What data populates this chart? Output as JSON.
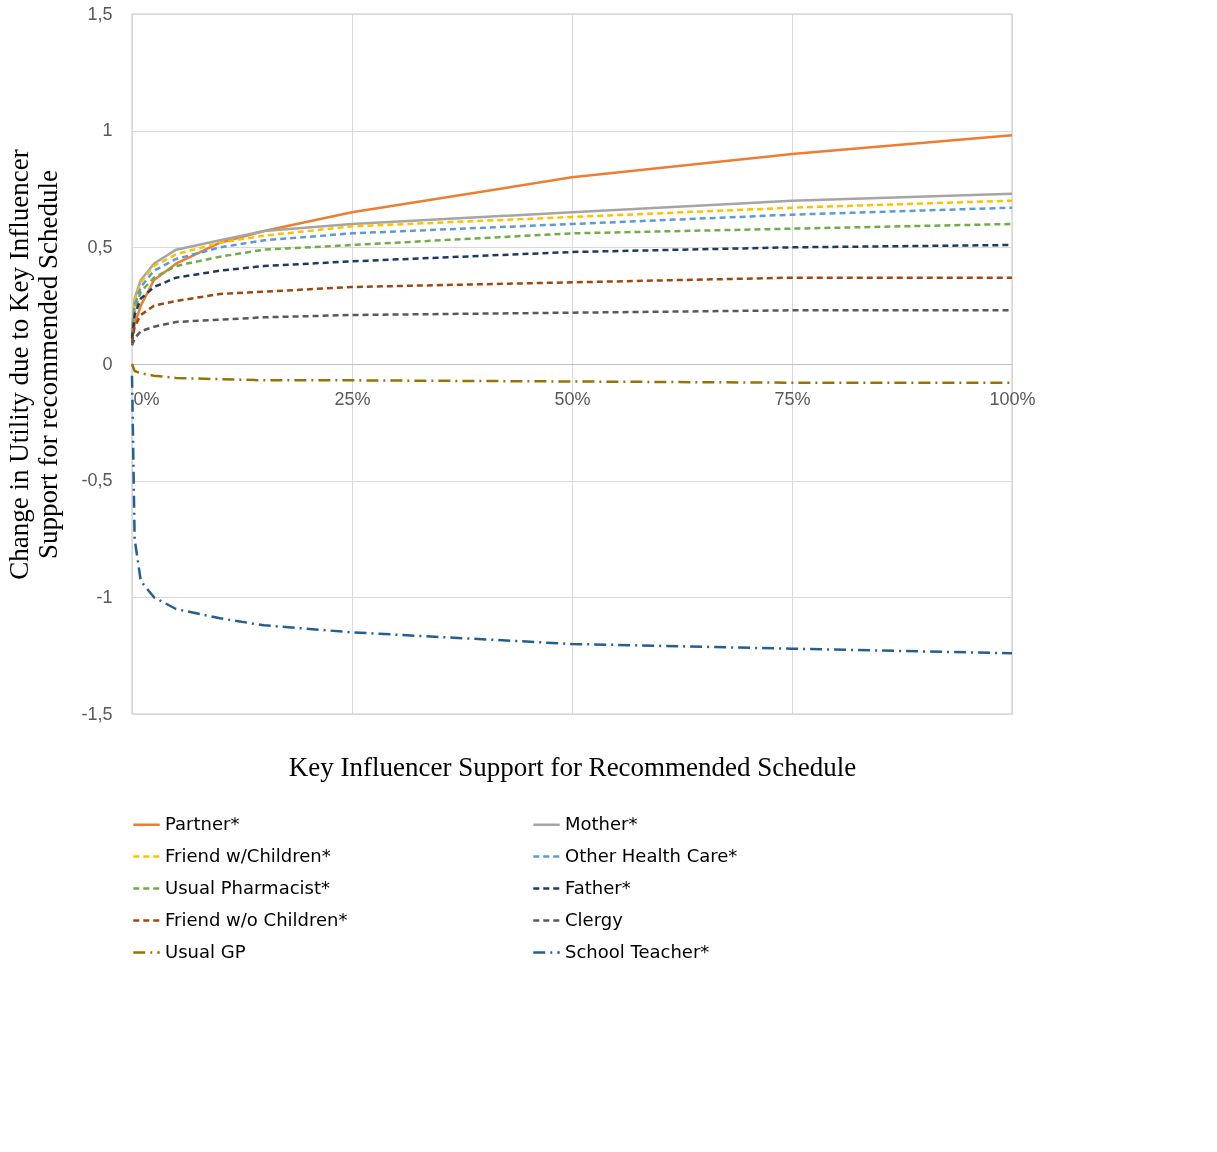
{
  "chart_data": {
    "type": "line",
    "xlabel": "Key Influencer Support for Recommended Schedule",
    "ylabel": "Change in Utility  due to Key Influencer\nSupport for recommended Schedule",
    "x": [
      0,
      0.3,
      1,
      2.5,
      5,
      10,
      15,
      25,
      50,
      75,
      100
    ],
    "series": [
      {
        "name": "Partner*",
        "color": "#ed7d31",
        "line_style": "solid",
        "values": [
          0.1,
          0.17,
          0.25,
          0.36,
          0.43,
          0.52,
          0.57,
          0.65,
          0.8,
          0.9,
          0.98
        ]
      },
      {
        "name": "Mother*",
        "color": "#a5a5a5",
        "line_style": "solid",
        "values": [
          0.15,
          0.28,
          0.36,
          0.43,
          0.49,
          0.53,
          0.57,
          0.6,
          0.65,
          0.7,
          0.73
        ]
      },
      {
        "name": "Friend w/Children*",
        "color": "#ffc000",
        "line_style": "dashed",
        "values": [
          0.14,
          0.27,
          0.35,
          0.42,
          0.47,
          0.52,
          0.55,
          0.59,
          0.63,
          0.67,
          0.7
        ]
      },
      {
        "name": "Other Health Care*",
        "color": "#5b9bd5",
        "line_style": "dashed",
        "values": [
          0.13,
          0.25,
          0.33,
          0.4,
          0.45,
          0.5,
          0.53,
          0.56,
          0.6,
          0.64,
          0.67
        ]
      },
      {
        "name": "Usual Pharmacist*",
        "color": "#70ad47",
        "line_style": "dashed",
        "values": [
          0.12,
          0.23,
          0.31,
          0.37,
          0.42,
          0.46,
          0.49,
          0.51,
          0.56,
          0.58,
          0.6
        ]
      },
      {
        "name": "Father*",
        "color": "#203864",
        "line_style": "dashed",
        "values": [
          0.11,
          0.21,
          0.28,
          0.33,
          0.37,
          0.4,
          0.42,
          0.44,
          0.48,
          0.5,
          0.51
        ]
      },
      {
        "name": "Friend w/o Children*",
        "color": "#9e480e",
        "line_style": "dashed",
        "values": [
          0.09,
          0.16,
          0.21,
          0.25,
          0.27,
          0.3,
          0.31,
          0.33,
          0.35,
          0.37,
          0.37
        ]
      },
      {
        "name": "Clergy",
        "color": "#595959",
        "line_style": "dashed",
        "values": [
          0.08,
          0.11,
          0.14,
          0.16,
          0.18,
          0.19,
          0.2,
          0.21,
          0.22,
          0.23,
          0.23
        ]
      },
      {
        "name": "Usual GP",
        "color": "#997300",
        "line_style": "dashdot",
        "values": [
          0,
          -0.03,
          -0.04,
          -0.05,
          -0.06,
          -0.065,
          -0.07,
          -0.07,
          -0.075,
          -0.08,
          -0.08
        ]
      },
      {
        "name": "School Teacher*",
        "color": "#255e91",
        "line_style": "dashdot",
        "values": [
          -0.05,
          -0.75,
          -0.93,
          -1.0,
          -1.05,
          -1.09,
          -1.12,
          -1.15,
          -1.2,
          -1.22,
          -1.24
        ]
      }
    ],
    "xlim": [
      0,
      100
    ],
    "xticks": [
      {
        "value": 0,
        "label": "0%"
      },
      {
        "value": 25,
        "label": "25%"
      },
      {
        "value": 50,
        "label": "50%"
      },
      {
        "value": 75,
        "label": "75%"
      },
      {
        "value": 100,
        "label": "100%"
      }
    ],
    "ylim": [
      -1.5,
      1.5
    ],
    "yticks": [
      {
        "value": -1.5,
        "label": "-1,5"
      },
      {
        "value": -1,
        "label": "-1"
      },
      {
        "value": -0.5,
        "label": "-0,5"
      },
      {
        "value": 0,
        "label": "0"
      },
      {
        "value": 0.5,
        "label": "0,5"
      },
      {
        "value": 1,
        "label": "1"
      },
      {
        "value": 1.5,
        "label": "1,5"
      }
    ],
    "grid": true,
    "legend": "bottom",
    "marker": "none"
  }
}
